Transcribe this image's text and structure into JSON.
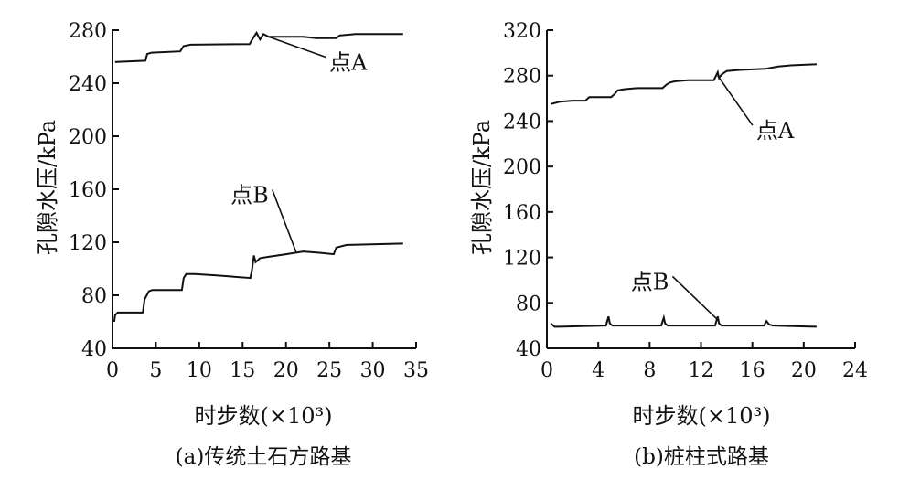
{
  "chart_data": [
    {
      "type": "line",
      "caption": "(a)传统土石方路基",
      "xlabel": "时步数(×10³)",
      "ylabel": "孔隙水压/kPa",
      "xlim": [
        0,
        35
      ],
      "ylim": [
        40,
        280
      ],
      "xticks": [
        0,
        5,
        10,
        15,
        20,
        25,
        30,
        35
      ],
      "yticks": [
        40,
        80,
        120,
        160,
        200,
        240,
        280
      ],
      "series": [
        {
          "name": "点A",
          "x": [
            0.3,
            3.8,
            4.0,
            4.5,
            7.8,
            8.2,
            9.0,
            15.8,
            16.2,
            16.6,
            17.0,
            17.4,
            18.0,
            22.0,
            23.5,
            25.8,
            26.2,
            28.0,
            33.5
          ],
          "y": [
            256,
            257,
            262,
            263,
            264,
            268,
            269,
            269.5,
            274,
            278,
            273,
            277,
            275,
            275,
            274,
            274,
            276,
            277,
            277
          ]
        },
        {
          "name": "点B",
          "x": [
            0.2,
            0.3,
            0.6,
            3.5,
            3.7,
            4.2,
            4.6,
            8.0,
            8.2,
            8.5,
            9.5,
            12.0,
            15.9,
            16.1,
            16.3,
            16.5,
            17.0,
            18.0,
            20.0,
            22.0,
            24.0,
            25.5,
            25.8,
            27.0,
            33.5
          ],
          "y": [
            60,
            65,
            67,
            67,
            77,
            83,
            84,
            84,
            93,
            96,
            96,
            95,
            93,
            100,
            110,
            105,
            108,
            109,
            111,
            113,
            112,
            111,
            116,
            118,
            119
          ]
        }
      ],
      "annotations": [
        {
          "text": "点A",
          "series": "点A",
          "point_x": 18,
          "point_y": 275,
          "label_x": 25,
          "label_y": 250
        },
        {
          "text": "点B",
          "series": "点B",
          "point_x": 21.2,
          "point_y": 112,
          "label_x": 18,
          "label_y": 150
        }
      ]
    },
    {
      "type": "line",
      "caption": "(b)桩柱式路基",
      "xlabel": "时步数(×10³)",
      "ylabel": "孔隙水压/kPa",
      "xlim": [
        0,
        24
      ],
      "ylim": [
        40,
        320
      ],
      "xticks": [
        0,
        4,
        8,
        12,
        16,
        20,
        24
      ],
      "yticks": [
        40,
        80,
        120,
        160,
        200,
        240,
        280,
        320
      ],
      "series": [
        {
          "name": "点A",
          "x": [
            0.3,
            1.0,
            2.0,
            3.0,
            3.3,
            4.0,
            5.0,
            5.3,
            5.5,
            6.0,
            7.0,
            9.0,
            9.3,
            9.6,
            10.0,
            11.0,
            13.0,
            13.3,
            13.4,
            13.6,
            14.0,
            15.0,
            17.0,
            18.0,
            19.0,
            21.0
          ],
          "y": [
            255,
            257,
            258,
            258,
            261,
            261,
            261,
            264,
            267,
            268,
            269,
            269,
            272,
            274,
            275,
            276,
            276,
            283,
            278,
            281,
            284,
            285,
            286,
            288,
            289,
            290
          ]
        },
        {
          "name": "点B",
          "x": [
            0.3,
            0.6,
            1.0,
            4.6,
            4.8,
            4.9,
            5.1,
            5.5,
            8.9,
            9.1,
            9.2,
            9.4,
            9.8,
            13.1,
            13.3,
            13.4,
            13.6,
            14.0,
            16.9,
            17.1,
            17.3,
            17.6,
            21.0
          ],
          "y": [
            62,
            59,
            59,
            60,
            68,
            62,
            60,
            60,
            60,
            67,
            62,
            60,
            60,
            60,
            68,
            62,
            60,
            60,
            60,
            64,
            61,
            60,
            59
          ]
        }
      ],
      "annotations": [
        {
          "text": "点A",
          "series": "点A",
          "point_x": 13.3,
          "point_y": 280,
          "label_x": 16.3,
          "label_y": 225
        },
        {
          "text": "点B",
          "series": "点B",
          "point_x": 13.4,
          "point_y": 64,
          "label_x": 9.5,
          "label_y": 92
        }
      ]
    }
  ]
}
